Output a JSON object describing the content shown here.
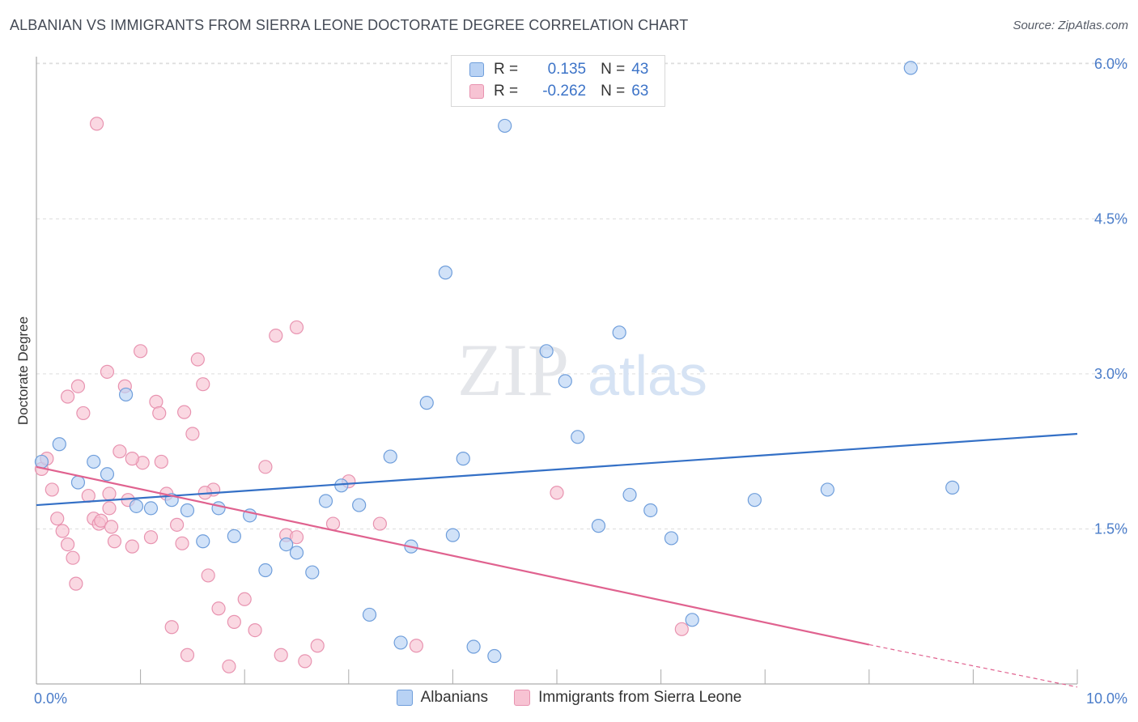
{
  "header": {
    "title": "ALBANIAN VS IMMIGRANTS FROM SIERRA LEONE DOCTORATE DEGREE CORRELATION CHART",
    "source": "Source: ZipAtlas.com"
  },
  "watermark": {
    "zip": "ZIP",
    "atlas": "atlas"
  },
  "legend": {
    "rows": [
      {
        "r_label": "R =",
        "r_value": "0.135",
        "n_label": "N =",
        "n_value": "43"
      },
      {
        "r_label": "R =",
        "r_value": "-0.262",
        "n_label": "N =",
        "n_value": "63"
      }
    ]
  },
  "colors": {
    "albanian_fill": "#b8d2f4",
    "albanian_stroke": "#6f9edb",
    "albanian_line": "#3470c6",
    "sierra_fill": "#f7c3d3",
    "sierra_stroke": "#e893b0",
    "sierra_line": "#e0628f",
    "tick_text": "#4a7cc9",
    "grid": "#dddddd"
  },
  "chart_data": {
    "type": "scatter",
    "title": "ALBANIAN VS IMMIGRANTS FROM SIERRA LEONE DOCTORATE DEGREE CORRELATION CHART",
    "xlabel": "",
    "ylabel": "Doctorate Degree",
    "xlim": [
      0,
      10
    ],
    "ylim": [
      0,
      6.2
    ],
    "x_tick_labels": [
      "0.0%",
      "10.0%"
    ],
    "y_ticks": [
      1.5,
      3.0,
      4.5,
      6.0
    ],
    "y_tick_labels": [
      "1.5%",
      "3.0%",
      "4.5%",
      "6.0%"
    ],
    "grid": true,
    "legend_position": "bottom",
    "series": [
      {
        "name": "Albanians",
        "r": 0.135,
        "n": 43,
        "trend": {
          "x": [
            0,
            10
          ],
          "y": [
            1.73,
            2.42
          ]
        },
        "x": [
          0.05,
          0.22,
          0.4,
          0.55,
          0.68,
          0.86,
          0.96,
          1.1,
          1.3,
          1.45,
          1.6,
          1.75,
          1.9,
          2.05,
          2.2,
          2.4,
          2.5,
          2.65,
          2.78,
          2.93,
          3.1,
          3.2,
          3.4,
          3.5,
          3.6,
          3.75,
          3.93,
          4.0,
          4.1,
          4.2,
          4.4,
          4.5,
          4.9,
          5.08,
          5.2,
          5.4,
          5.6,
          5.7,
          5.9,
          6.1,
          6.3,
          6.9,
          7.6,
          8.4,
          8.8
        ],
        "y": [
          2.15,
          2.32,
          1.95,
          2.15,
          2.03,
          2.8,
          1.72,
          1.7,
          1.78,
          1.68,
          1.38,
          1.7,
          1.43,
          1.63,
          1.1,
          1.35,
          1.27,
          1.08,
          1.77,
          1.92,
          1.73,
          0.67,
          2.2,
          0.4,
          1.33,
          2.72,
          3.98,
          1.44,
          2.18,
          0.36,
          0.27,
          5.4,
          3.22,
          2.93,
          2.39,
          1.53,
          3.4,
          1.83,
          1.68,
          1.41,
          0.62,
          1.78,
          1.88,
          5.96,
          1.9
        ]
      },
      {
        "name": "Immigrants from Sierra Leone",
        "r": -0.262,
        "n": 63,
        "trend": {
          "x": [
            0,
            8
          ],
          "y": [
            2.1,
            0.38
          ]
        },
        "trend_dashed": {
          "x": [
            8,
            10
          ],
          "y": [
            0.38,
            -0.03
          ]
        },
        "x": [
          0.05,
          0.1,
          0.15,
          0.2,
          0.25,
          0.3,
          0.35,
          0.4,
          0.45,
          0.5,
          0.55,
          0.6,
          0.62,
          0.68,
          0.7,
          0.72,
          0.75,
          0.8,
          0.85,
          0.88,
          0.92,
          1.0,
          1.02,
          1.1,
          1.15,
          1.2,
          1.25,
          1.3,
          1.35,
          1.4,
          1.42,
          1.5,
          1.55,
          1.6,
          1.65,
          1.7,
          1.75,
          1.85,
          1.9,
          2.0,
          2.1,
          2.2,
          2.3,
          2.35,
          2.4,
          2.5,
          2.58,
          2.7,
          3.0,
          3.3,
          3.65,
          0.58,
          0.3,
          1.45,
          1.18,
          0.7,
          0.38,
          2.5,
          2.85,
          5.0,
          6.2,
          0.92,
          1.62
        ],
        "y": [
          2.08,
          2.18,
          1.88,
          1.6,
          1.48,
          1.35,
          1.22,
          2.88,
          2.62,
          1.82,
          1.6,
          1.55,
          1.58,
          3.02,
          1.84,
          1.52,
          1.38,
          2.25,
          2.88,
          1.78,
          1.33,
          3.22,
          2.14,
          1.42,
          2.73,
          2.15,
          1.84,
          0.55,
          1.54,
          1.36,
          2.63,
          2.42,
          3.14,
          2.9,
          1.05,
          1.88,
          0.73,
          0.17,
          0.6,
          0.82,
          0.52,
          2.1,
          3.37,
          0.28,
          1.44,
          3.45,
          0.22,
          0.37,
          1.96,
          1.55,
          0.37,
          5.42,
          2.78,
          0.28,
          2.62,
          1.7,
          0.97,
          1.42,
          1.55,
          1.85,
          0.53,
          2.18,
          1.85
        ]
      }
    ]
  }
}
